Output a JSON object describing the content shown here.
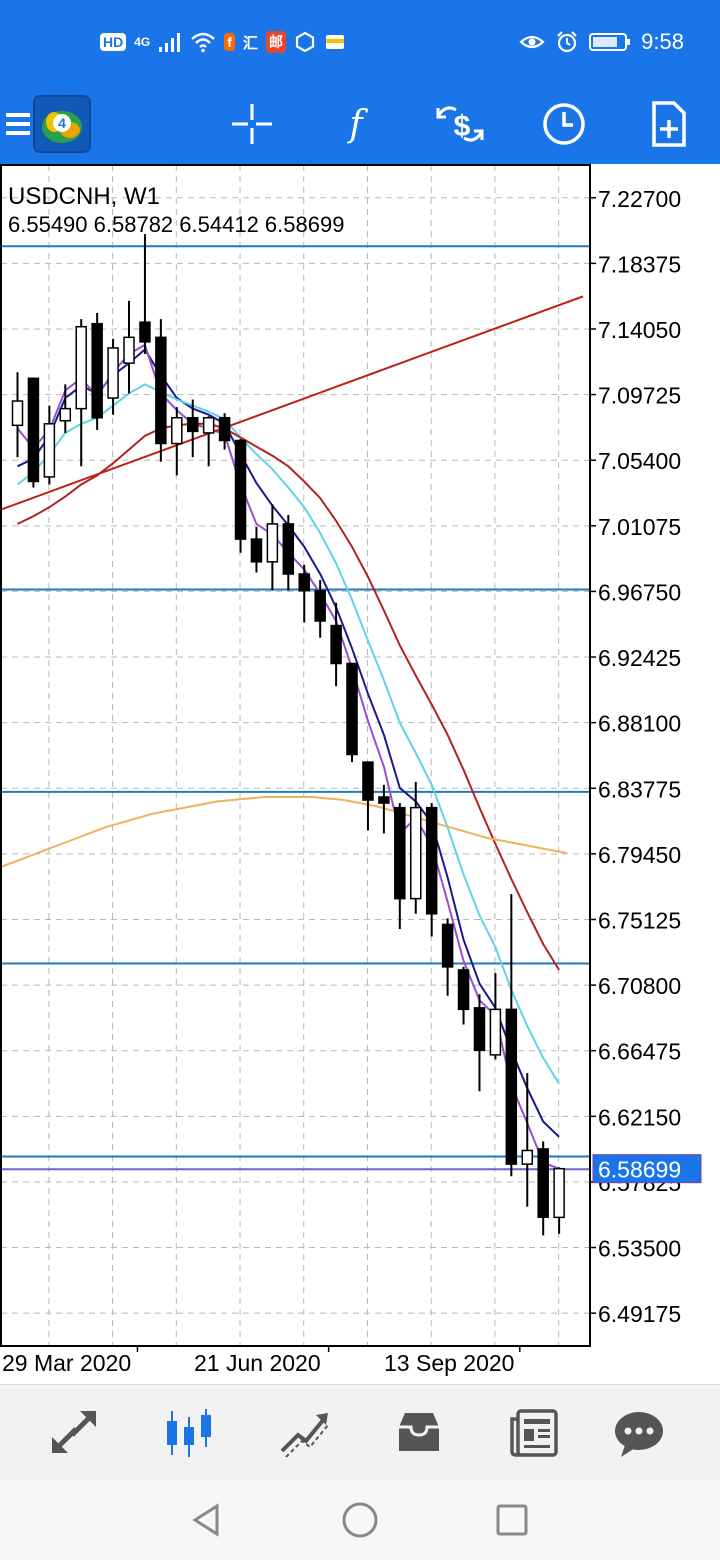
{
  "status_bar": {
    "network": [
      "HD",
      "4G"
    ],
    "app_badges": [
      "汇",
      "邮"
    ],
    "time": "9:58"
  },
  "toolbar": {
    "buttons": [
      "menu-icon",
      "mt4-logo",
      "crosshair-icon",
      "indicators-icon",
      "trade-icon",
      "timeframe-icon",
      "new-order-icon"
    ]
  },
  "chart": {
    "symbol_title": "USDCNH, W1",
    "ohlc": "6.55490 6.58782 6.54412 6.58699",
    "current_price_label": "6.58699",
    "price_ticks": [
      "7.22700",
      "7.18375",
      "7.14050",
      "7.09725",
      "7.05400",
      "7.01075",
      "6.96750",
      "6.92425",
      "6.88100",
      "6.83775",
      "6.79450",
      "6.75125",
      "6.70800",
      "6.66475",
      "6.62150",
      "6.57825",
      "6.53500",
      "6.49175"
    ],
    "date_labels": [
      "29 Mar 2020",
      "21 Jun 2020",
      "13 Sep 2020"
    ],
    "colors": {
      "bull_fill": "#ffffff",
      "bear_fill": "#000000",
      "hline": "#1f78c0",
      "trendline": "#c0201a",
      "ma_fast": "#1a1a8c",
      "ma_purple": "#9c4dcc",
      "ma_cyan": "#5fd3e8",
      "ma_red": "#b22222",
      "ma_orange": "#f0b060",
      "price_tag": "#1a75e8"
    }
  },
  "chart_data": {
    "type": "candlestick",
    "symbol": "USDCNH",
    "timeframe": "W1",
    "ylim": [
      6.4701,
      7.2486
    ],
    "x_ticks": [
      "29 Mar 2020",
      "21 Jun 2020",
      "13 Sep 2020"
    ],
    "candles": [
      {
        "o": 7.077,
        "h": 7.112,
        "l": 7.056,
        "c": 7.093
      },
      {
        "o": 7.108,
        "h": 7.108,
        "l": 7.036,
        "c": 7.04
      },
      {
        "o": 7.043,
        "h": 7.09,
        "l": 7.038,
        "c": 7.078
      },
      {
        "o": 7.08,
        "h": 7.104,
        "l": 7.072,
        "c": 7.088
      },
      {
        "o": 7.088,
        "h": 7.147,
        "l": 7.05,
        "c": 7.142
      },
      {
        "o": 7.144,
        "h": 7.151,
        "l": 7.074,
        "c": 7.082
      },
      {
        "o": 7.095,
        "h": 7.134,
        "l": 7.084,
        "c": 7.128
      },
      {
        "o": 7.118,
        "h": 7.159,
        "l": 7.098,
        "c": 7.135
      },
      {
        "o": 7.145,
        "h": 7.203,
        "l": 7.124,
        "c": 7.132
      },
      {
        "o": 7.135,
        "h": 7.147,
        "l": 7.053,
        "c": 7.065
      },
      {
        "o": 7.065,
        "h": 7.089,
        "l": 7.044,
        "c": 7.082
      },
      {
        "o": 7.082,
        "h": 7.094,
        "l": 7.056,
        "c": 7.073
      },
      {
        "o": 7.072,
        "h": 7.083,
        "l": 7.05,
        "c": 7.082
      },
      {
        "o": 7.082,
        "h": 7.085,
        "l": 7.061,
        "c": 7.067
      },
      {
        "o": 7.067,
        "h": 7.068,
        "l": 6.993,
        "c": 7.002
      },
      {
        "o": 7.002,
        "h": 7.01,
        "l": 6.98,
        "c": 6.987
      },
      {
        "o": 6.987,
        "h": 7.025,
        "l": 6.968,
        "c": 7.012
      },
      {
        "o": 7.012,
        "h": 7.018,
        "l": 6.968,
        "c": 6.979
      },
      {
        "o": 6.979,
        "h": 6.985,
        "l": 6.947,
        "c": 6.968
      },
      {
        "o": 6.968,
        "h": 6.975,
        "l": 6.937,
        "c": 6.948
      },
      {
        "o": 6.945,
        "h": 6.96,
        "l": 6.905,
        "c": 6.92
      },
      {
        "o": 6.92,
        "h": 6.92,
        "l": 6.855,
        "c": 6.86
      },
      {
        "o": 6.855,
        "h": 6.855,
        "l": 6.81,
        "c": 6.83
      },
      {
        "o": 6.832,
        "h": 6.84,
        "l": 6.808,
        "c": 6.828
      },
      {
        "o": 6.825,
        "h": 6.828,
        "l": 6.745,
        "c": 6.765
      },
      {
        "o": 6.765,
        "h": 6.842,
        "l": 6.755,
        "c": 6.825
      },
      {
        "o": 6.825,
        "h": 6.828,
        "l": 6.74,
        "c": 6.755
      },
      {
        "o": 6.748,
        "h": 6.752,
        "l": 6.701,
        "c": 6.72
      },
      {
        "o": 6.718,
        "h": 6.72,
        "l": 6.682,
        "c": 6.692
      },
      {
        "o": 6.693,
        "h": 6.702,
        "l": 6.638,
        "c": 6.665
      },
      {
        "o": 6.662,
        "h": 6.716,
        "l": 6.659,
        "c": 6.692
      },
      {
        "o": 6.692,
        "h": 6.768,
        "l": 6.582,
        "c": 6.59
      },
      {
        "o": 6.59,
        "h": 6.65,
        "l": 6.562,
        "c": 6.599
      },
      {
        "o": 6.6,
        "h": 6.605,
        "l": 6.543,
        "c": 6.555
      },
      {
        "o": 6.5549,
        "h": 6.58782,
        "l": 6.54412,
        "c": 6.58699
      }
    ],
    "last_ohlc": {
      "open": 6.5549,
      "high": 6.58782,
      "low": 6.54412,
      "close": 6.58699
    },
    "horizontal_levels": [
      7.195,
      6.9688,
      6.8354,
      6.7222,
      6.595,
      6.5866
    ],
    "trendline": [
      {
        "x": -3.5,
        "y": 7.012
      },
      {
        "x": 35.5,
        "y": 7.162
      }
    ],
    "moving_averages": [
      {
        "color": "ma_fast",
        "x_start": 0,
        "values": [
          7.05,
          7.055,
          7.07,
          7.095,
          7.103,
          7.098,
          7.11,
          7.118,
          7.127,
          7.11,
          7.095,
          7.088,
          7.084,
          7.078,
          7.058,
          7.039,
          7.024,
          7.011,
          6.997,
          6.979,
          6.957,
          6.93,
          6.9,
          6.873,
          6.838,
          6.829,
          6.815,
          6.779,
          6.738,
          6.709,
          6.693,
          6.665,
          6.64,
          6.618,
          6.608
        ]
      },
      {
        "color": "ma_purple",
        "x_start": 0,
        "values": [
          7.075,
          7.062,
          7.074,
          7.1,
          7.108,
          7.096,
          7.112,
          7.124,
          7.13,
          7.098,
          7.087,
          7.078,
          7.075,
          7.071,
          7.038,
          7.012,
          7.005,
          6.993,
          6.982,
          6.966,
          6.948,
          6.917,
          6.882,
          6.852,
          6.808,
          6.818,
          6.8,
          6.763,
          6.724,
          6.698,
          6.688,
          6.642,
          6.617,
          6.591,
          6.587
        ]
      },
      {
        "color": "ma_cyan",
        "x_start": 0,
        "values": [
          7.038,
          7.046,
          7.058,
          7.072,
          7.078,
          7.082,
          7.09,
          7.098,
          7.104,
          7.099,
          7.094,
          7.09,
          7.086,
          7.081,
          7.069,
          7.058,
          7.048,
          7.036,
          7.023,
          7.006,
          6.986,
          6.962,
          6.935,
          6.909,
          6.881,
          6.861,
          6.84,
          6.812,
          6.781,
          6.754,
          6.733,
          6.705,
          6.681,
          6.66,
          6.643
        ]
      },
      {
        "color": "ma_red",
        "x_start": 0,
        "values": [
          7.012,
          7.017,
          7.023,
          7.03,
          7.038,
          7.044,
          7.052,
          7.061,
          7.07,
          7.075,
          7.077,
          7.078,
          7.078,
          7.075,
          7.069,
          7.063,
          7.057,
          7.05,
          7.04,
          7.029,
          7.014,
          6.997,
          6.977,
          6.955,
          6.932,
          6.912,
          6.893,
          6.873,
          6.85,
          6.825,
          6.801,
          6.778,
          6.756,
          6.735,
          6.718
        ]
      },
      {
        "color": "ma_orange",
        "x_start": -3.5,
        "values": [
          6.775,
          6.78,
          6.784,
          6.788,
          6.792,
          6.796,
          6.8,
          6.804,
          6.808,
          6.812,
          6.815,
          6.818,
          6.821,
          6.823,
          6.825,
          6.827,
          6.829,
          6.83,
          6.831,
          6.832,
          6.832,
          6.832,
          6.832,
          6.831,
          6.83,
          6.828,
          6.826,
          6.823,
          6.82,
          6.817,
          6.814,
          6.811,
          6.808,
          6.805,
          6.803,
          6.801,
          6.799,
          6.797,
          6.795
        ]
      }
    ]
  },
  "bottom_nav": {
    "items": [
      "quotes-icon",
      "chart-icon",
      "trade-icon",
      "history-icon",
      "news-icon",
      "chat-icon"
    ],
    "active": 1
  }
}
